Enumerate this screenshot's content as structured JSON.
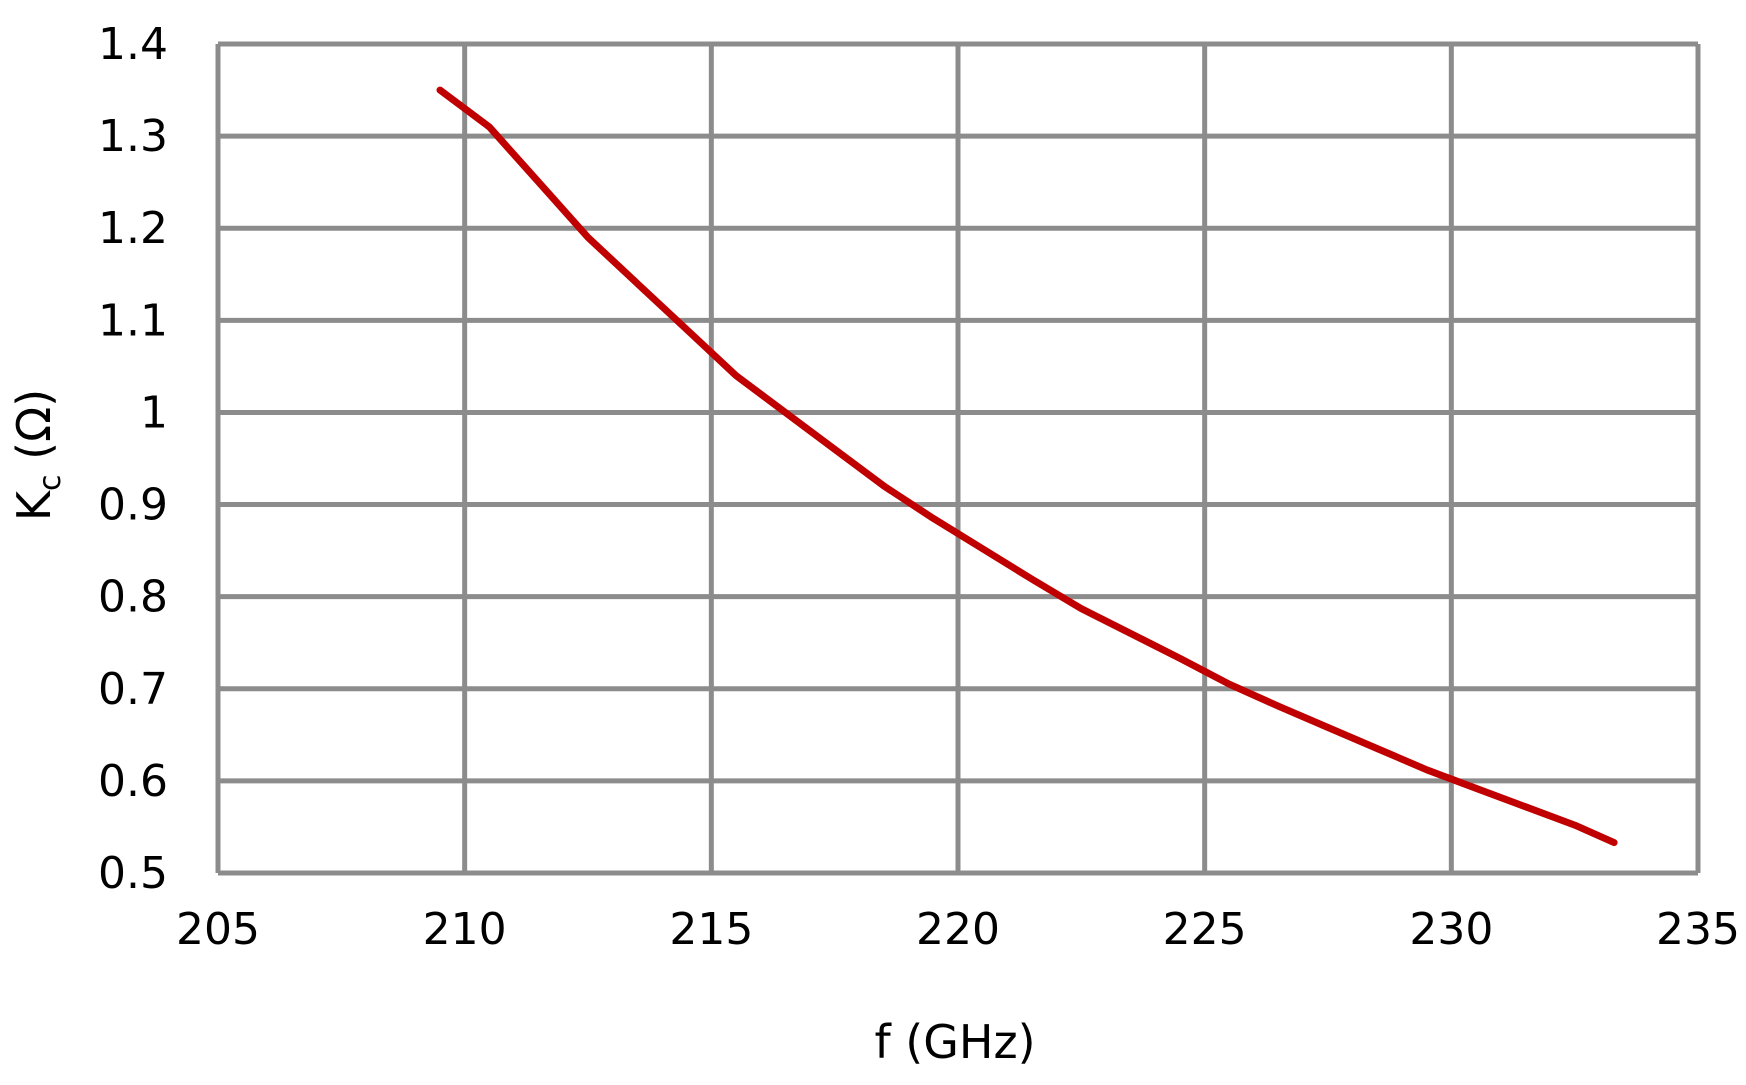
{
  "chart_data": {
    "type": "line",
    "xlabel": "f (GHz)",
    "ylabel_main": "K",
    "ylabel_sub": "c",
    "ylabel_unit": " (Ω)",
    "xlim": [
      205,
      235
    ],
    "ylim": [
      0.5,
      1.4
    ],
    "xticks": [
      "205",
      "210",
      "215",
      "220",
      "225",
      "230",
      "235"
    ],
    "yticks": [
      "0.5",
      "0.6",
      "0.7",
      "0.8",
      "0.9",
      "1",
      "1.1",
      "1.2",
      "1.3",
      "1.4"
    ],
    "grid": true,
    "series": [
      {
        "color": "#c00000",
        "x": [
          209.5,
          210.5,
          211.5,
          212.5,
          213.5,
          214.5,
          215.5,
          216.5,
          217.5,
          218.5,
          219.5,
          220.5,
          221.5,
          222.5,
          223.5,
          224.5,
          225.5,
          226.5,
          227.5,
          228.5,
          229.5,
          230.5,
          231.5,
          232.5,
          233.3
        ],
        "y": [
          1.35,
          1.31,
          1.25,
          1.19,
          1.14,
          1.09,
          1.04,
          1.0,
          0.96,
          0.92,
          0.885,
          0.852,
          0.819,
          0.787,
          0.76,
          0.733,
          0.705,
          0.681,
          0.658,
          0.635,
          0.612,
          0.592,
          0.572,
          0.552,
          0.533
        ]
      }
    ]
  },
  "colors": {
    "grid": "#8c8c8c",
    "line": "#c00000",
    "text": "#000000"
  }
}
